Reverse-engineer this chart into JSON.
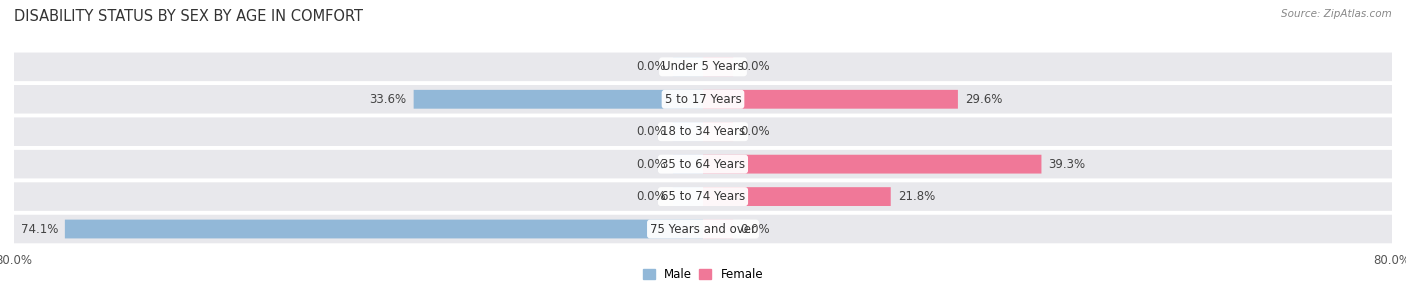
{
  "title": "DISABILITY STATUS BY SEX BY AGE IN COMFORT",
  "source": "Source: ZipAtlas.com",
  "categories": [
    "Under 5 Years",
    "5 to 17 Years",
    "18 to 34 Years",
    "35 to 64 Years",
    "65 to 74 Years",
    "75 Years and over"
  ],
  "male_values": [
    0.0,
    33.6,
    0.0,
    0.0,
    0.0,
    74.1
  ],
  "female_values": [
    0.0,
    29.6,
    0.0,
    39.3,
    21.8,
    0.0
  ],
  "male_color": "#92b8d8",
  "female_color": "#f07898",
  "male_zero_color": "#c8dcf0",
  "female_zero_color": "#f8c0d0",
  "row_bg_color": "#e8e8ec",
  "xlim": 80.0,
  "title_fontsize": 10.5,
  "label_fontsize": 8.5,
  "tick_fontsize": 8.5,
  "source_fontsize": 7.5,
  "legend_male": "Male",
  "legend_female": "Female"
}
